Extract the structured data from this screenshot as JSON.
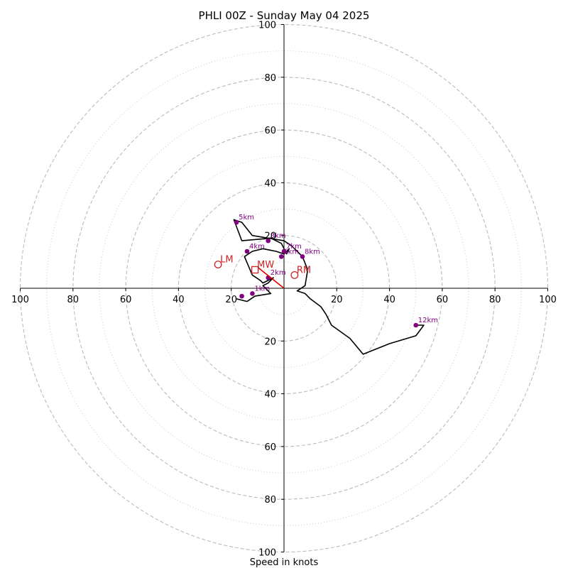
{
  "chart_data": {
    "type": "hodograph",
    "title": "PHLI 00Z - Sunday May 04 2025",
    "xlabel": "Speed in knots",
    "units": "kt",
    "range": [
      -100,
      100
    ],
    "ring_major": [
      20,
      40,
      60,
      80,
      100
    ],
    "ring_minor": [
      10,
      30,
      50,
      70,
      90
    ],
    "tick_labels": {
      "x_left": [
        "100",
        "80",
        "60",
        "40",
        "20"
      ],
      "x_right": [
        "20",
        "40",
        "60",
        "80",
        "100"
      ],
      "y_up": [
        "20",
        "40",
        "60",
        "80",
        "100"
      ],
      "y_down": [
        "20",
        "40",
        "60",
        "80",
        "100"
      ]
    },
    "grid": true,
    "colors": {
      "trace": "#000000",
      "height_marker": "#800080",
      "motion": "#cc2222",
      "shear_vector": "#dd0000",
      "grid": "#bbbbbb"
    },
    "trace": [
      [
        -18,
        -4
      ],
      [
        -14,
        -5
      ],
      [
        -11,
        -3
      ],
      [
        -5,
        -2
      ],
      [
        -8,
        1
      ],
      [
        -6,
        2
      ],
      [
        -4,
        4
      ],
      [
        -8,
        2
      ],
      [
        -9,
        3
      ],
      [
        -12,
        5
      ],
      [
        -15,
        12
      ],
      [
        -12,
        14
      ],
      [
        -8,
        15
      ],
      [
        -3,
        14
      ],
      [
        0,
        13
      ],
      [
        2,
        15
      ],
      [
        1,
        13
      ],
      [
        -1,
        17
      ],
      [
        -5,
        19
      ],
      [
        -16,
        18
      ],
      [
        -19,
        26
      ],
      [
        -16,
        25
      ],
      [
        -12,
        20
      ],
      [
        -6,
        19
      ],
      [
        0,
        18
      ],
      [
        3,
        16
      ],
      [
        7,
        12
      ],
      [
        9,
        7
      ],
      [
        8,
        1
      ],
      [
        5,
        -1
      ],
      [
        8,
        -2
      ],
      [
        10,
        -4
      ],
      [
        14,
        -7
      ],
      [
        16,
        -10
      ],
      [
        18,
        -14
      ],
      [
        25,
        -19
      ],
      [
        30,
        -25
      ],
      [
        40,
        -21
      ],
      [
        50,
        -18
      ],
      [
        53,
        -14
      ],
      [
        50,
        -14
      ]
    ],
    "height_markers": [
      {
        "label": "1km",
        "u": -12,
        "v": -2
      },
      {
        "label": "2km",
        "u": -6,
        "v": 4
      },
      {
        "label": "3km",
        "u": -6,
        "v": 18
      },
      {
        "label": "4km",
        "u": -14,
        "v": 14
      },
      {
        "label": "5km",
        "u": -18,
        "v": 25
      },
      {
        "label": "6km",
        "u": -1,
        "v": 12
      },
      {
        "label": "7km",
        "u": 0,
        "v": 14
      },
      {
        "label": "8km",
        "u": 7,
        "v": 12
      },
      {
        "label": "12km",
        "u": 50,
        "v": -14
      },
      {
        "label": "",
        "u": -16,
        "v": -3
      }
    ],
    "storm_motion": [
      {
        "label": "LM",
        "u": -25,
        "v": 9,
        "marker": "circle"
      },
      {
        "label": "RM",
        "u": 4,
        "v": 5,
        "marker": "circle"
      },
      {
        "label": "MW",
        "u": -11,
        "v": 7,
        "marker": "square"
      }
    ],
    "shear_vector": {
      "from": [
        0,
        0
      ],
      "to": [
        -10,
        8
      ]
    }
  }
}
